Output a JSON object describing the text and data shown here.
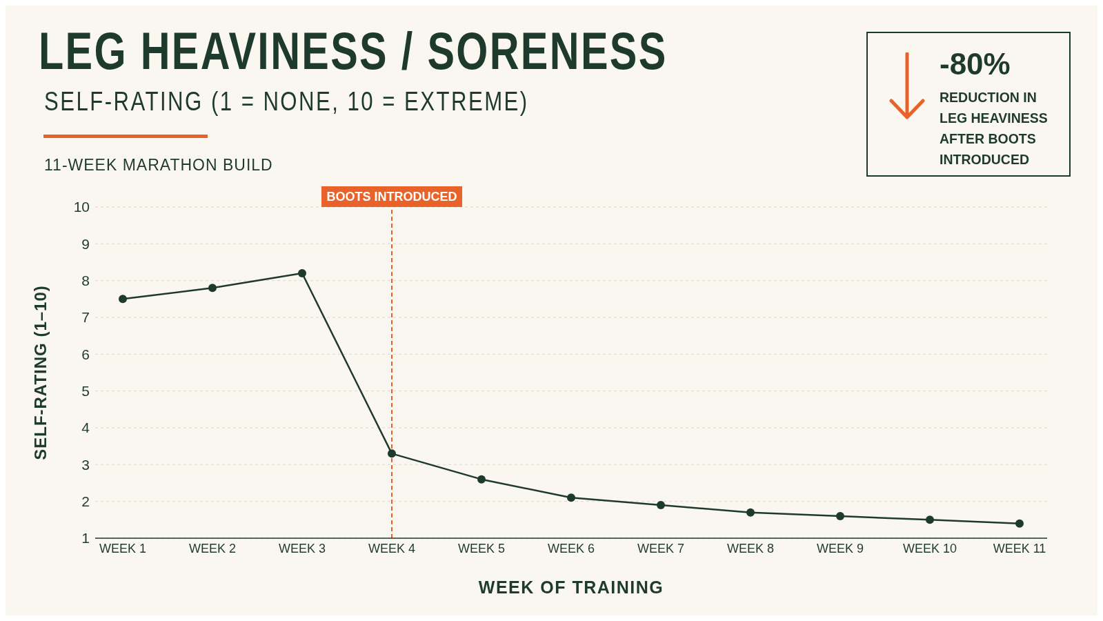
{
  "chart_data": {
    "type": "line",
    "title": "LEG HEAVINESS / SORENESS",
    "subtitle": "SELF-RATING (1 = NONE, 10 = EXTREME)",
    "xlabel": "WEEK OF TRAINING",
    "ylabel": "SELF-RATING (1–10)",
    "categories": [
      "WEEK 1",
      "WEEK 2",
      "WEEK 3",
      "WEEK 4",
      "WEEK 5",
      "WEEK 6",
      "WEEK 7",
      "WEEK 8",
      "WEEK 9",
      "WEEK 10",
      "WEEK 11"
    ],
    "series": [
      {
        "color": "#1e3a2c",
        "values": [
          7.5,
          7.8,
          8.2,
          3.3,
          2.6,
          2.1,
          1.9,
          1.7,
          1.6,
          1.5,
          1.4
        ]
      }
    ],
    "ylim": [
      1,
      10
    ],
    "yticks": [
      1,
      2,
      3,
      4,
      5,
      6,
      7,
      8,
      9,
      10
    ],
    "grid": "y",
    "marker": "circle",
    "line_style": "solid",
    "ref_lines": [
      {
        "axis": "x",
        "value": "WEEK 4",
        "label": "BOOTS INTRODUCED",
        "color": "#e8622a",
        "line_style": "dashed"
      }
    ],
    "annotations": [
      "11-WEEK MARATHON BUILD",
      "-80%",
      "REDUCTION IN LEG HEAVINESS AFTER BOOTS INTRODUCED"
    ]
  }
}
